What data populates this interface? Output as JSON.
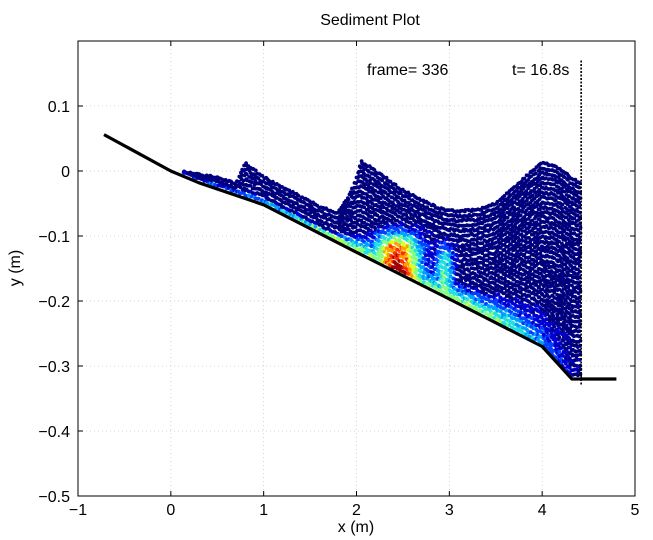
{
  "chart_data": {
    "type": "scatter",
    "title": "Sediment Plot",
    "xlabel": "x (m)",
    "ylabel": "y (m)",
    "xlim": [
      -1,
      5
    ],
    "ylim": [
      -0.5,
      0.2
    ],
    "xticks": [
      -1,
      0,
      1,
      2,
      3,
      4,
      5
    ],
    "yticks": [
      -0.5,
      -0.4,
      -0.3,
      -0.2,
      -0.1,
      0,
      0.1
    ],
    "xtick_labels": [
      "−1",
      "0",
      "1",
      "2",
      "3",
      "4",
      "5"
    ],
    "ytick_labels": [
      "−0.5",
      "−0.4",
      "−0.3",
      "−0.2",
      "−0.1",
      "0",
      "0.1"
    ],
    "grid": true,
    "annotations": {
      "frame": "frame= 336",
      "time": "t= 16.8s"
    },
    "beach_profile": {
      "x": [
        -0.72,
        0.0,
        0.3,
        1.0,
        2.0,
        3.0,
        4.0,
        4.32,
        4.8
      ],
      "y": [
        0.056,
        0.0,
        -0.018,
        -0.052,
        -0.125,
        -0.197,
        -0.27,
        -0.32,
        -0.32
      ]
    },
    "water_surface": {
      "x": [
        0.05,
        0.3,
        0.5,
        0.7,
        0.8,
        1.0,
        1.2,
        1.4,
        1.6,
        1.8,
        1.95,
        2.05,
        2.15,
        2.3,
        2.5,
        2.7,
        2.9,
        3.1,
        3.3,
        3.5,
        3.7,
        3.85,
        4.0,
        4.15,
        4.3,
        4.42
      ],
      "y": [
        0.0,
        -0.005,
        -0.01,
        -0.02,
        0.012,
        -0.01,
        -0.025,
        -0.04,
        -0.055,
        -0.065,
        -0.03,
        0.015,
        0.005,
        -0.01,
        -0.03,
        -0.045,
        -0.058,
        -0.062,
        -0.06,
        -0.05,
        -0.025,
        -0.005,
        0.012,
        0.008,
        -0.01,
        -0.02
      ]
    },
    "paddle": {
      "x": 4.42,
      "y_top": 0.17,
      "y_bottom": -0.33
    },
    "colormap": [
      "#00007f",
      "#0000d0",
      "#0040ff",
      "#00a0ff",
      "#20e0e0",
      "#80ff80",
      "#e0ff20",
      "#ffa000",
      "#ff3000",
      "#a00000"
    ],
    "sediment_features": [
      {
        "x": 2.45,
        "width": 0.28,
        "top": -0.115,
        "peak": 0.95
      },
      {
        "x": 2.95,
        "width": 0.12,
        "top": -0.13,
        "peak": 0.55
      },
      {
        "x": 2.0,
        "width": 0.35,
        "top": -0.16,
        "peak": 0.6
      }
    ]
  }
}
